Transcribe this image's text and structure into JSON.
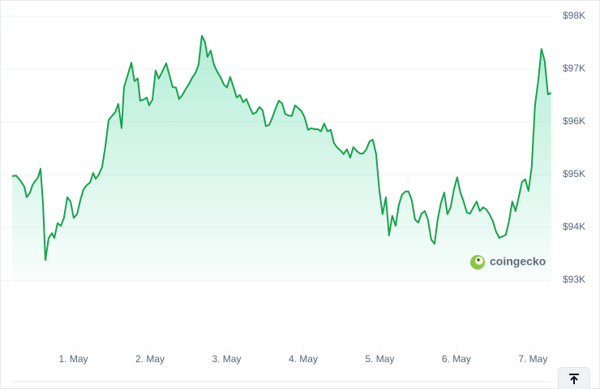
{
  "watermark": "coingecko",
  "chart_data": {
    "type": "line",
    "color": "#16a34a",
    "grid": true,
    "xlim": [
      0.2,
      7.24
    ],
    "xticks": [
      {
        "value": 1,
        "label": "1. May"
      },
      {
        "value": 2,
        "label": "2. May"
      },
      {
        "value": 3,
        "label": "3. May"
      },
      {
        "value": 4,
        "label": "4. May"
      },
      {
        "value": 5,
        "label": "5. May"
      },
      {
        "value": 6,
        "label": "6. May"
      },
      {
        "value": 7,
        "label": "7. May"
      }
    ],
    "ylim": [
      93000,
      98000
    ],
    "yticks": [
      {
        "value": 93000,
        "label": "$93K"
      },
      {
        "value": 94000,
        "label": "$94K"
      },
      {
        "value": 95000,
        "label": "$95K"
      },
      {
        "value": 96000,
        "label": "$96K"
      },
      {
        "value": 97000,
        "label": "$97K"
      },
      {
        "value": 98000,
        "label": "$98K"
      }
    ],
    "x": [
      0.2,
      0.253,
      0.306,
      0.359,
      0.39,
      0.433,
      0.465,
      0.507,
      0.539,
      0.57,
      0.602,
      0.634,
      0.676,
      0.719,
      0.75,
      0.793,
      0.835,
      0.877,
      0.92,
      0.962,
      1.004,
      1.047,
      1.089,
      1.131,
      1.174,
      1.216,
      1.258,
      1.29,
      1.332,
      1.375,
      1.417,
      1.459,
      1.502,
      1.544,
      1.586,
      1.629,
      1.66,
      1.703,
      1.756,
      1.798,
      1.84,
      1.872,
      1.914,
      1.957,
      1.988,
      2.031,
      2.073,
      2.115,
      2.158,
      2.211,
      2.253,
      2.295,
      2.338,
      2.38,
      2.422,
      2.465,
      2.507,
      2.549,
      2.592,
      2.634,
      2.676,
      2.719,
      2.75,
      2.793,
      2.835,
      2.877,
      2.92,
      2.962,
      3.004,
      3.047,
      3.089,
      3.131,
      3.174,
      3.216,
      3.258,
      3.301,
      3.343,
      3.385,
      3.428,
      3.47,
      3.512,
      3.555,
      3.597,
      3.639,
      3.682,
      3.724,
      3.766,
      3.809,
      3.851,
      3.893,
      3.936,
      3.978,
      4.02,
      4.063,
      4.105,
      4.147,
      4.19,
      4.232,
      4.274,
      4.317,
      4.359,
      4.401,
      4.444,
      4.486,
      4.528,
      4.571,
      4.613,
      4.655,
      4.698,
      4.74,
      4.782,
      4.825,
      4.867,
      4.909,
      4.952,
      4.994,
      5.036,
      5.079,
      5.121,
      5.163,
      5.206,
      5.248,
      5.29,
      5.333,
      5.375,
      5.417,
      5.46,
      5.502,
      5.544,
      5.587,
      5.629,
      5.671,
      5.714,
      5.756,
      5.798,
      5.841,
      5.883,
      5.925,
      5.968,
      6.01,
      6.052,
      6.095,
      6.137,
      6.179,
      6.222,
      6.264,
      6.306,
      6.349,
      6.391,
      6.433,
      6.476,
      6.518,
      6.56,
      6.603,
      6.645,
      6.687,
      6.73,
      6.772,
      6.814,
      6.857,
      6.899,
      6.941,
      6.984,
      7.026,
      7.068,
      7.111,
      7.153,
      7.196,
      7.238
    ],
    "values": [
      94970,
      94980,
      94890,
      94770,
      94570,
      94660,
      94800,
      94890,
      94950,
      95110,
      94460,
      93380,
      93800,
      93890,
      93800,
      94080,
      94030,
      94180,
      94570,
      94490,
      94180,
      94250,
      94510,
      94720,
      94800,
      94850,
      95030,
      94920,
      95000,
      95150,
      95540,
      96030,
      96110,
      96180,
      96340,
      95880,
      96650,
      96860,
      97120,
      96770,
      96820,
      96400,
      96420,
      96460,
      96310,
      96420,
      96970,
      96820,
      96950,
      97110,
      96890,
      96660,
      96650,
      96430,
      96510,
      96620,
      96710,
      96830,
      96920,
      97080,
      97630,
      97510,
      97230,
      97350,
      97080,
      96950,
      96850,
      96710,
      96650,
      96850,
      96660,
      96460,
      96510,
      96370,
      96430,
      96280,
      96150,
      96180,
      96280,
      96220,
      95920,
      95940,
      96080,
      96250,
      96400,
      96350,
      96150,
      96120,
      96110,
      96310,
      96260,
      96200,
      96080,
      95850,
      95880,
      95860,
      95860,
      95820,
      95970,
      95820,
      95850,
      95600,
      95510,
      95460,
      95390,
      95480,
      95320,
      95520,
      95450,
      95400,
      95400,
      95480,
      95630,
      95660,
      95390,
      94710,
      94250,
      94570,
      93850,
      94220,
      94030,
      94420,
      94620,
      94680,
      94680,
      94520,
      94150,
      94090,
      94260,
      94310,
      94150,
      93770,
      93690,
      94150,
      94460,
      94660,
      94250,
      94380,
      94720,
      94950,
      94660,
      94490,
      94280,
      94260,
      94380,
      94490,
      94310,
      94380,
      94340,
      94250,
      94120,
      93920,
      93800,
      93830,
      93860,
      94120,
      94490,
      94310,
      94570,
      94860,
      94910,
      94690,
      95150,
      96310,
      96770,
      97380,
      97150,
      96520,
      96550
    ]
  }
}
